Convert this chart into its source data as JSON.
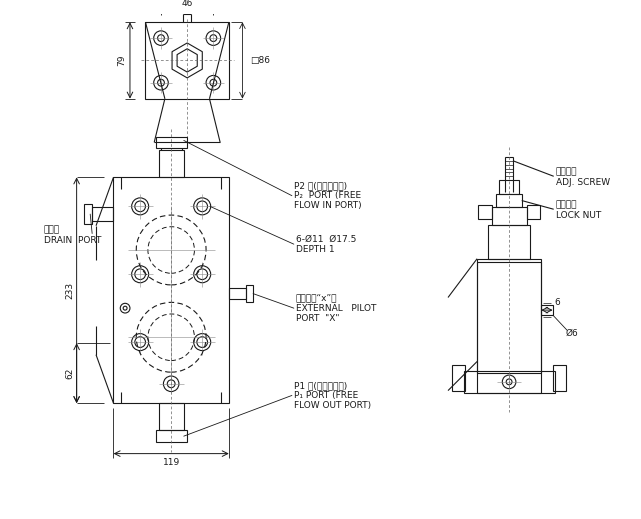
{
  "bg_color": "#ffffff",
  "line_color": "#1a1a1a",
  "labels": {
    "p2_cn": "P2 口(自由流入口)",
    "p2_en1": "P₂  PORT (FREE",
    "p2_en2": "FLOW IN PORT)",
    "drain_cn": "洩流口",
    "drain_en": "DRAIN  PORT",
    "hole": "6-Ø11  Ø17.5",
    "depth": "DEPTH 1",
    "ext_cn": "外部引導“x”口",
    "ext_en1": "EXTERNAL   PILOT",
    "ext_en2": "PORT  \"X\"",
    "p1_cn": "P1 口(自由流出口)",
    "p1_en1": "P₁ PORT (FREE",
    "p1_en2": "FLOW OUT PORT)",
    "adj_cn": "調節螺絲",
    "adj_en": "ADJ. SCREW",
    "lock_cn": "固定螺帽",
    "lock_en": "LOCK NUT",
    "dim46": "46",
    "dim79": "79",
    "dim86": "□86",
    "dim233": "233",
    "dim62": "62",
    "dim119": "119",
    "dim6h": "6",
    "dim6d": "Ø6"
  }
}
